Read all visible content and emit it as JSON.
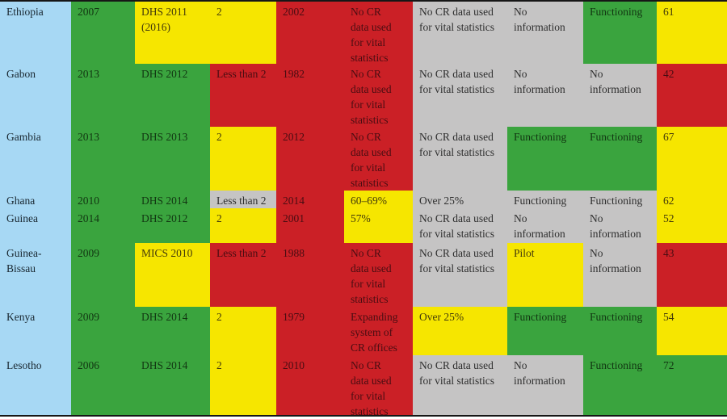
{
  "table": {
    "description_visible": false,
    "colors": {
      "blue": "#a7d8f4",
      "green": "#3aa43e",
      "yellow": "#f6e600",
      "red": "#cb2026",
      "gray": "#c5c4c4"
    },
    "text_colors": {
      "blue": "#18262f",
      "green": "#123612",
      "yellow": "#433a0a",
      "red": "#490d12",
      "gray": "#2e2e2e"
    },
    "rows": [
      {
        "country": "Ethiopia",
        "cells": [
          {
            "t": "Ethiopia",
            "c": "blue"
          },
          {
            "t": "2007",
            "c": "green"
          },
          {
            "t": "DHS 2011\n(2016)",
            "c": "yellow"
          },
          {
            "t": "2",
            "c": "yellow"
          },
          {
            "t": "2002",
            "c": "red"
          },
          {
            "t": "No CR\ndata used\nfor vital\nstatistics",
            "c": "red"
          },
          {
            "t": "No CR data used\nfor vital statistics",
            "c": "gray"
          },
          {
            "t": "No\ninformation",
            "c": "gray"
          },
          {
            "t": "Functioning",
            "c": "green"
          },
          {
            "t": "61",
            "c": "yellow"
          }
        ]
      },
      {
        "country": "Gabon",
        "cells": [
          {
            "t": "Gabon",
            "c": "blue"
          },
          {
            "t": "2013",
            "c": "green"
          },
          {
            "t": "DHS 2012",
            "c": "green"
          },
          {
            "t": "Less than 2",
            "c": "red"
          },
          {
            "t": "1982",
            "c": "red"
          },
          {
            "t": "No CR\ndata used\nfor vital\nstatistics",
            "c": "red"
          },
          {
            "t": "No CR data used\nfor vital statistics",
            "c": "gray"
          },
          {
            "t": "No\ninformation",
            "c": "gray"
          },
          {
            "t": "No\ninformation",
            "c": "gray"
          },
          {
            "t": "42",
            "c": "red"
          }
        ]
      },
      {
        "country": "Gambia",
        "cells": [
          {
            "t": "Gambia",
            "c": "blue"
          },
          {
            "t": "2013",
            "c": "green"
          },
          {
            "t": "DHS 2013",
            "c": "green"
          },
          {
            "t": "2",
            "c": "yellow"
          },
          {
            "t": "2012",
            "c": "red"
          },
          {
            "t": "No CR\ndata used\nfor vital\nstatistics",
            "c": "red"
          },
          {
            "t": "No CR data used\nfor vital statistics",
            "c": "gray"
          },
          {
            "t": "Functioning",
            "c": "green"
          },
          {
            "t": "Functioning",
            "c": "green"
          },
          {
            "t": "67",
            "c": "yellow"
          }
        ]
      },
      {
        "country": "Ghana",
        "cells": [
          {
            "t": "Ghana",
            "c": "blue"
          },
          {
            "t": "2010",
            "c": "green"
          },
          {
            "t": "DHS 2014",
            "c": "green"
          },
          {
            "t": "Less than 2",
            "c": "gray"
          },
          {
            "t": "2014",
            "c": "red"
          },
          {
            "t": "60–69%",
            "c": "yellow"
          },
          {
            "t": "Over 25%",
            "c": "gray"
          },
          {
            "t": "Functioning",
            "c": "gray"
          },
          {
            "t": "Functioning",
            "c": "gray"
          },
          {
            "t": "62",
            "c": "yellow"
          }
        ]
      },
      {
        "country": "Guinea",
        "cells": [
          {
            "t": "Guinea",
            "c": "blue"
          },
          {
            "t": "2014",
            "c": "green"
          },
          {
            "t": "DHS 2012",
            "c": "green"
          },
          {
            "t": "2",
            "c": "yellow"
          },
          {
            "t": "2001",
            "c": "red"
          },
          {
            "t": "57%",
            "c": "yellow"
          },
          {
            "t": "No CR data used\nfor vital statistics",
            "c": "gray"
          },
          {
            "t": "No\ninformation",
            "c": "gray"
          },
          {
            "t": "No\ninformation",
            "c": "gray"
          },
          {
            "t": "52",
            "c": "yellow"
          }
        ]
      },
      {
        "country": "Guinea-Bissau",
        "cells": [
          {
            "t": "Guinea-\nBissau",
            "c": "blue"
          },
          {
            "t": "2009",
            "c": "green"
          },
          {
            "t": "MICS 2010",
            "c": "yellow"
          },
          {
            "t": "Less than 2",
            "c": "red"
          },
          {
            "t": "1988",
            "c": "red"
          },
          {
            "t": "No CR\ndata used\nfor vital\nstatistics",
            "c": "red"
          },
          {
            "t": "No CR data used\nfor vital statistics",
            "c": "gray"
          },
          {
            "t": "Pilot",
            "c": "yellow"
          },
          {
            "t": "No\ninformation",
            "c": "gray"
          },
          {
            "t": "43",
            "c": "red"
          }
        ]
      },
      {
        "country": "Kenya",
        "cells": [
          {
            "t": "Kenya",
            "c": "blue"
          },
          {
            "t": "2009",
            "c": "green"
          },
          {
            "t": "DHS 2014",
            "c": "green"
          },
          {
            "t": "2",
            "c": "yellow"
          },
          {
            "t": "1979",
            "c": "red"
          },
          {
            "t": "Expanding\nsystem of\nCR offices",
            "c": "red"
          },
          {
            "t": "Over 25%",
            "c": "yellow"
          },
          {
            "t": "Functioning",
            "c": "green"
          },
          {
            "t": "Functioning",
            "c": "green"
          },
          {
            "t": "54",
            "c": "yellow"
          }
        ]
      },
      {
        "country": "Lesotho",
        "cells": [
          {
            "t": "Lesotho",
            "c": "blue"
          },
          {
            "t": "2006",
            "c": "green"
          },
          {
            "t": "DHS 2014",
            "c": "green"
          },
          {
            "t": "2",
            "c": "yellow"
          },
          {
            "t": "2010",
            "c": "red"
          },
          {
            "t": "No CR\ndata used\nfor vital\nstatistics",
            "c": "red"
          },
          {
            "t": "No CR data used\nfor vital statistics",
            "c": "gray"
          },
          {
            "t": "No\ninformation",
            "c": "gray"
          },
          {
            "t": "Functioning",
            "c": "green"
          },
          {
            "t": "72",
            "c": "green"
          }
        ]
      }
    ]
  }
}
